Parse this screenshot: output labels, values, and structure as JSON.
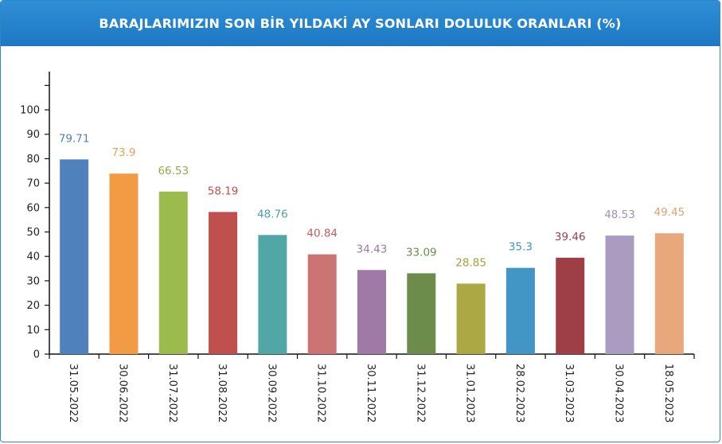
{
  "header": {
    "title": "BARAJLARIMIZIN SON BİR YILDAKİ AY SONLARI DOLULUK ORANLARI (%)"
  },
  "chart_data": {
    "type": "bar",
    "title": "BARAJLARIMIZIN SON BİR YILDAKİ AY SONLARI DOLULUK ORANLARI (%)",
    "xlabel": "",
    "ylabel": "",
    "ylim": [
      0,
      115
    ],
    "yticks": [
      0,
      10,
      20,
      30,
      40,
      50,
      60,
      70,
      80,
      90,
      100
    ],
    "categories": [
      "31.05.2022",
      "30.06.2022",
      "31.07.2022",
      "31.08.2022",
      "30.09.2022",
      "31.10.2022",
      "30.11.2022",
      "31.12.2022",
      "31.01.2023",
      "28.02.2023",
      "31.03.2023",
      "30.04.2023",
      "18.05.2023"
    ],
    "values": [
      79.71,
      73.9,
      66.53,
      58.19,
      48.76,
      40.84,
      34.43,
      33.09,
      28.85,
      35.3,
      39.46,
      48.53,
      49.45
    ],
    "value_labels": [
      "79.71",
      "73.9",
      "66.53",
      "58.19",
      "48.76",
      "40.84",
      "34.43",
      "33.09",
      "28.85",
      "35.3",
      "39.46",
      "48.53",
      "49.45"
    ],
    "colors": [
      "#4f81bd",
      "#f29b45",
      "#9bbb4d",
      "#c0504d",
      "#51a6a6",
      "#cc7373",
      "#a07aa6",
      "#6b8c4a",
      "#aca944",
      "#4196c6",
      "#9e3f45",
      "#aa9bc0",
      "#e8a87c"
    ],
    "label_colors": [
      "#4f81bd",
      "#e8a05a",
      "#8fae48",
      "#c0504d",
      "#4f9ea6",
      "#c45c5c",
      "#9c7aa3",
      "#6b8c4a",
      "#9fa13c",
      "#3e96c4",
      "#9e3f45",
      "#9f92b8",
      "#e3a070"
    ],
    "grid": false,
    "legend": "none"
  }
}
